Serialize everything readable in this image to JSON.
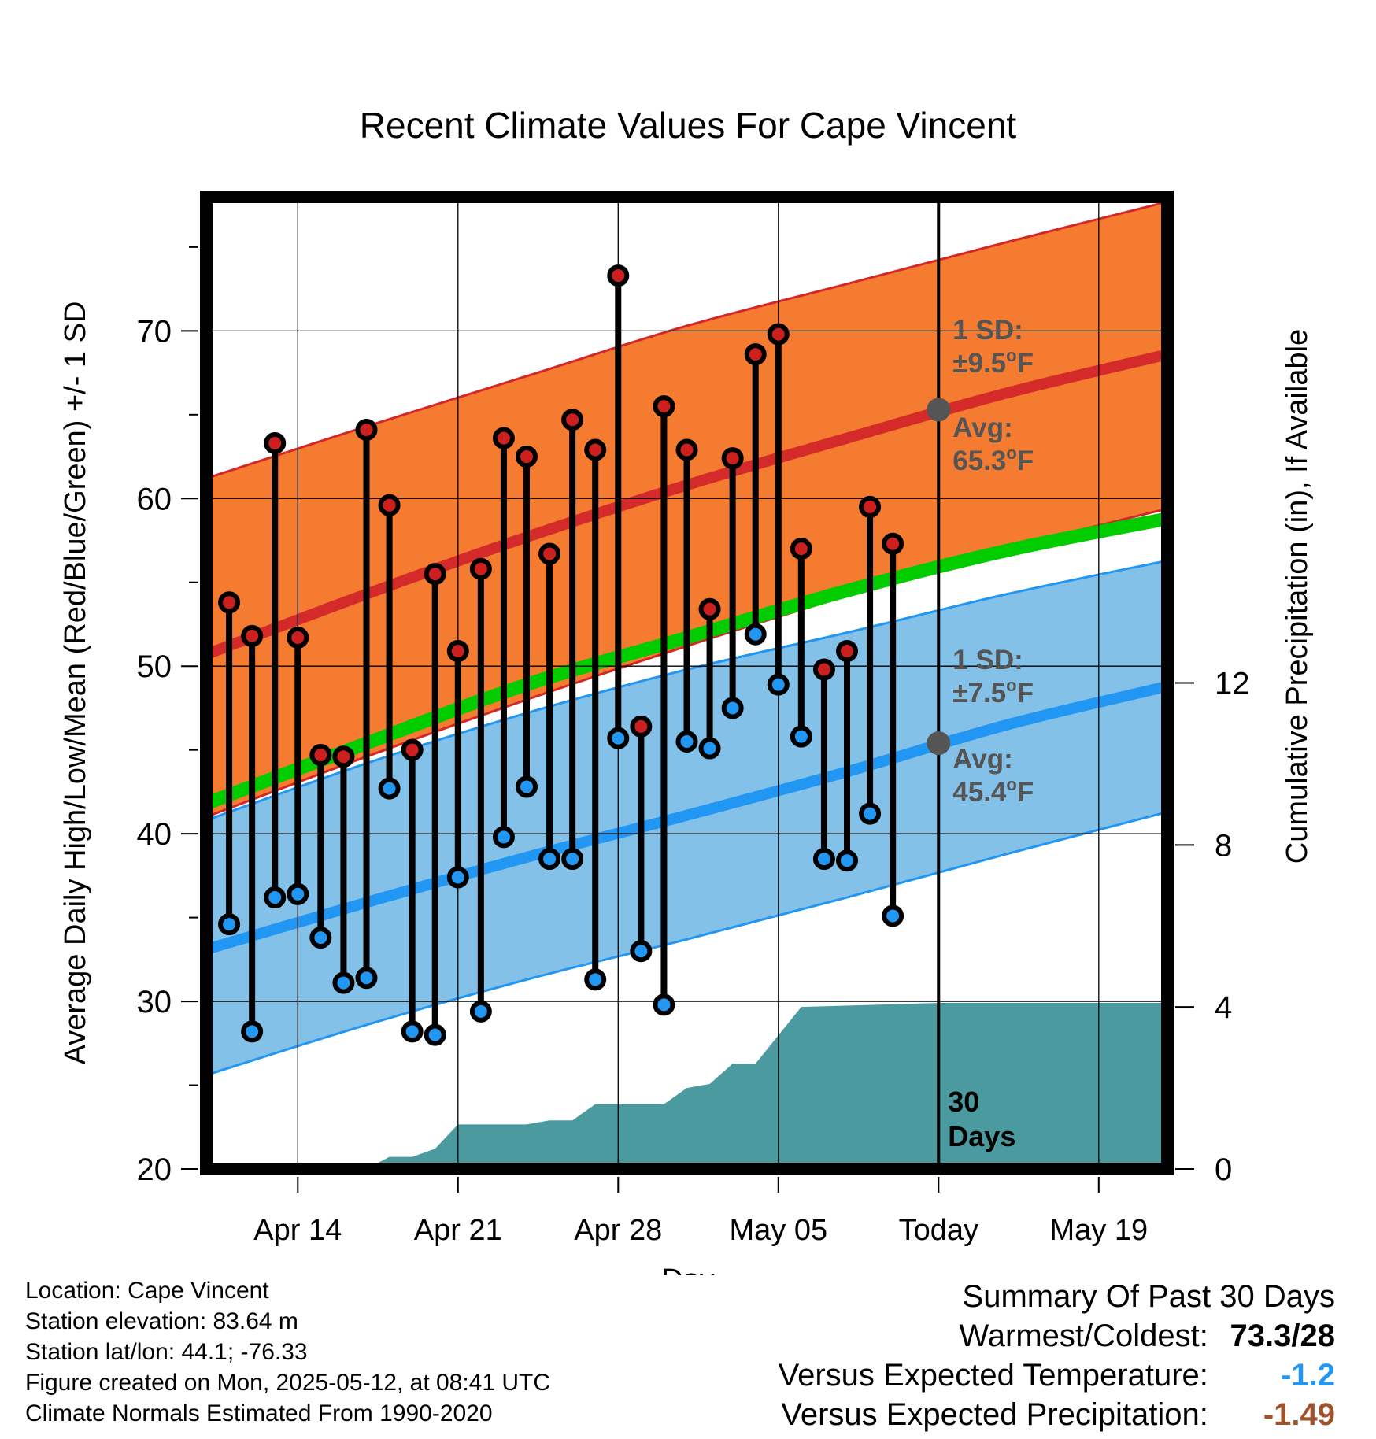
{
  "chart_data": {
    "type": "line",
    "title": "Recent Climate Values For Cape Vincent",
    "xlabel": "Day",
    "ylabel": "Average Daily High/Low/Mean (Red/Blue/Green) +/- 1 SD",
    "y2label": "Cumulative Precipitation (in), If Available",
    "x_range": [
      "2025-04-10",
      "2025-05-22"
    ],
    "ylim": [
      20,
      78
    ],
    "y2lim": [
      0,
      24
    ],
    "y_ticks": [
      20,
      30,
      40,
      50,
      60,
      70
    ],
    "y2_ticks": [
      0,
      4,
      8,
      12
    ],
    "x_ticks": [
      {
        "date": "2025-04-14",
        "label": "Apr 14"
      },
      {
        "date": "2025-04-21",
        "label": "Apr 21"
      },
      {
        "date": "2025-04-28",
        "label": "Apr 28"
      },
      {
        "date": "2025-05-05",
        "label": "May 05"
      },
      {
        "date": "2025-05-12",
        "label": "Today"
      },
      {
        "date": "2025-05-19",
        "label": "May 19"
      }
    ],
    "today": "2025-05-12",
    "normals": {
      "dates": [
        "2025-04-10",
        "2025-04-17",
        "2025-04-24",
        "2025-05-01",
        "2025-05-08",
        "2025-05-15",
        "2025-05-22"
      ],
      "high_avg": [
        50.7,
        54.3,
        57.7,
        60.8,
        63.6,
        66.3,
        68.6
      ],
      "high_upper": [
        61.2,
        64.3,
        67.3,
        70.3,
        72.8,
        75.3,
        77.7
      ],
      "high_lower": [
        41.0,
        44.6,
        48.0,
        51.2,
        54.2,
        57.0,
        59.4
      ],
      "mean": [
        41.8,
        45.4,
        48.9,
        51.7,
        54.5,
        56.9,
        58.8
      ],
      "low_avg": [
        33.1,
        35.9,
        38.6,
        41.1,
        43.7,
        46.5,
        48.8
      ],
      "low_upper": [
        40.8,
        44.2,
        47.2,
        49.8,
        52.0,
        54.3,
        56.3
      ],
      "low_lower": [
        25.6,
        28.6,
        31.3,
        33.7,
        36.2,
        38.8,
        41.3
      ]
    },
    "series": [
      {
        "name": "High",
        "color": "#cc1f1f",
        "dates": [
          "2025-04-11",
          "2025-04-12",
          "2025-04-13",
          "2025-04-14",
          "2025-04-15",
          "2025-04-16",
          "2025-04-17",
          "2025-04-18",
          "2025-04-19",
          "2025-04-20",
          "2025-04-21",
          "2025-04-22",
          "2025-04-23",
          "2025-04-24",
          "2025-04-25",
          "2025-04-26",
          "2025-04-27",
          "2025-04-28",
          "2025-04-29",
          "2025-04-30",
          "2025-05-01",
          "2025-05-02",
          "2025-05-03",
          "2025-05-04",
          "2025-05-05",
          "2025-05-06",
          "2025-05-07",
          "2025-05-08",
          "2025-05-09",
          "2025-05-10",
          "2025-05-11"
        ],
        "values": [
          53.8,
          51.8,
          63.3,
          51.7,
          44.7,
          44.6,
          64.1,
          59.6,
          45.0,
          55.5,
          50.9,
          55.8,
          63.6,
          62.5,
          56.7,
          64.7,
          62.9,
          73.3,
          46.4,
          65.5,
          62.9,
          53.4,
          62.4,
          68.6,
          69.8,
          57.0,
          49.8,
          50.9,
          59.5,
          57.3,
          null
        ]
      },
      {
        "name": "Low",
        "color": "#2196f3",
        "dates": [
          "2025-04-11",
          "2025-04-12",
          "2025-04-13",
          "2025-04-14",
          "2025-04-15",
          "2025-04-16",
          "2025-04-17",
          "2025-04-18",
          "2025-04-19",
          "2025-04-20",
          "2025-04-21",
          "2025-04-22",
          "2025-04-23",
          "2025-04-24",
          "2025-04-25",
          "2025-04-26",
          "2025-04-27",
          "2025-04-28",
          "2025-04-29",
          "2025-04-30",
          "2025-05-01",
          "2025-05-02",
          "2025-05-03",
          "2025-05-04",
          "2025-05-05",
          "2025-05-06",
          "2025-05-07",
          "2025-05-08",
          "2025-05-09",
          "2025-05-10",
          "2025-05-11"
        ],
        "values": [
          34.6,
          28.2,
          36.2,
          36.4,
          33.8,
          31.1,
          31.4,
          42.7,
          28.2,
          28.0,
          37.4,
          29.4,
          39.8,
          42.8,
          38.5,
          38.5,
          31.3,
          45.7,
          33.0,
          29.8,
          45.5,
          45.1,
          47.5,
          51.9,
          48.9,
          45.8,
          38.5,
          38.4,
          41.2,
          35.1,
          null
        ]
      },
      {
        "name": "Precipitation",
        "dates": [
          "2025-04-10",
          "2025-04-17",
          "2025-04-18",
          "2025-04-19",
          "2025-04-20",
          "2025-04-21",
          "2025-04-24",
          "2025-04-25",
          "2025-04-26",
          "2025-04-27",
          "2025-04-30",
          "2025-05-01",
          "2025-05-02",
          "2025-05-03",
          "2025-05-04",
          "2025-05-05",
          "2025-05-06",
          "2025-05-12",
          "2025-05-22"
        ],
        "values": [
          0,
          0,
          0.3,
          0.3,
          0.5,
          1.1,
          1.1,
          1.2,
          1.2,
          1.6,
          1.6,
          2.0,
          2.1,
          2.6,
          2.6,
          3.3,
          4.0,
          4.1,
          4.1
        ]
      }
    ],
    "annotations": {
      "high_sd": {
        "line1": "1 SD:",
        "line2": "±9.5",
        "deg": "o",
        "unit": "F"
      },
      "high_avg": {
        "line1": "Avg:",
        "line2": "65.3",
        "deg": "o",
        "unit": "F",
        "value": 65.3
      },
      "low_sd": {
        "line1": "1 SD:",
        "line2": "±7.5",
        "deg": "o",
        "unit": "F"
      },
      "low_avg": {
        "line1": "Avg:",
        "line2": "45.4",
        "deg": "o",
        "unit": "F",
        "value": 45.4
      },
      "period_line1": "30",
      "period_line2": "Days"
    },
    "colors": {
      "high_band": "#f47b2f",
      "high_band_edge": "#d62728",
      "high_avg": "#d42a2a",
      "low_band": "#83c1e8",
      "low_band_edge": "#2196f3",
      "low_avg": "#2196f3",
      "mean": "#00cc00",
      "precip": "#4a9aa0",
      "annotation": "#555555"
    }
  },
  "location": "Location: Cape Vincent",
  "elevation": "Station elevation: 83.64 m",
  "latlon": "Station lat/lon: 44.1; -76.33",
  "created": "Figure created on Mon, 2025-05-12, at 08:41 UTC",
  "normals_period": "Climate Normals Estimated From 1990-2020",
  "summary": {
    "title": "Summary Of Past 30 Days",
    "warmest_label": "Warmest/Coldest:",
    "warmest_value": "73.3/28",
    "temp_label": "Versus Expected Temperature:",
    "temp_value": "-1.2",
    "temp_color": "#2196f3",
    "precip_label": "Versus Expected Precipitation:",
    "precip_value": "-1.49",
    "precip_color": "#a0522d"
  }
}
